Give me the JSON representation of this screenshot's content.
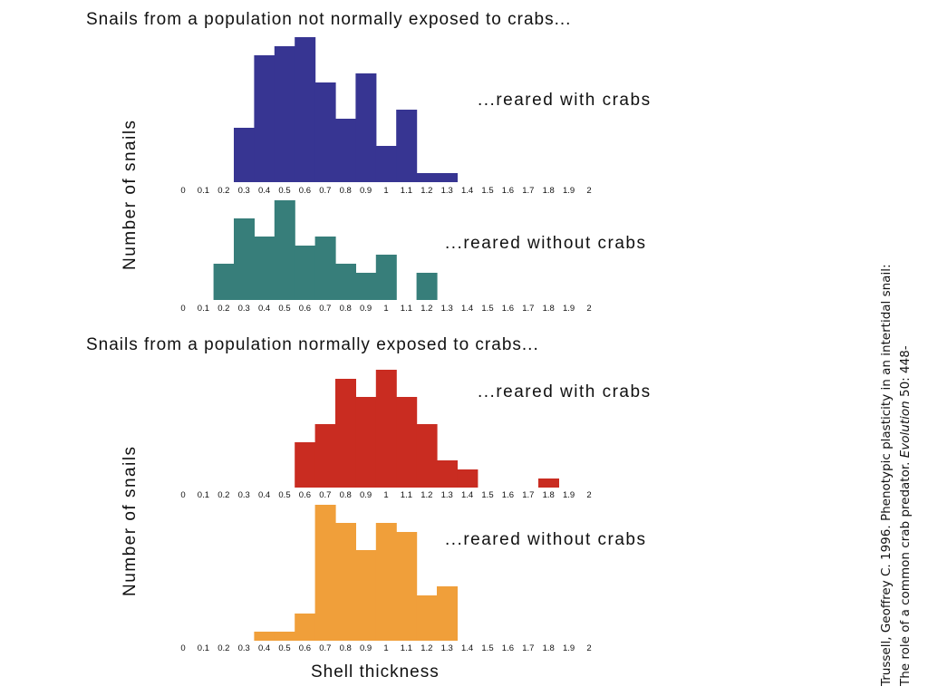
{
  "headings": {
    "top": "Snails from a population not normally exposed to crabs...",
    "bottom": "Snails from a population normally exposed to crabs..."
  },
  "ylabel": "Number of snails",
  "xlabel": "Shell thickness",
  "citation": {
    "line1": "Trussell, Geoffrey C. 1996. Phenotypic plasticity in an intertidal snail:",
    "line2_pre": "The role of a common crab predator. ",
    "line2_journal": "Evolution",
    "line2_post": " 50: 448-"
  },
  "chart_data": [
    {
      "type": "bar",
      "title": "...reared with crabs",
      "population": "not normally exposed to crabs",
      "color": "#373592",
      "xlabel": "Shell thickness",
      "ylabel": "Number of snails",
      "x_ticks": [
        "0",
        "0.1",
        "0.2",
        "0.3",
        "0.4",
        "0.5",
        "0.6",
        "0.7",
        "0.8",
        "0.9",
        "1",
        "1.1",
        "1.2",
        "1.3",
        "1.4",
        "1.5",
        "1.6",
        "1.7",
        "1.8",
        "1.9",
        "2"
      ],
      "xlim": [
        0,
        2
      ],
      "bin_centers": [
        0.3,
        0.4,
        0.5,
        0.6,
        0.7,
        0.8,
        0.9,
        1.0,
        1.1,
        1.2,
        1.3
      ],
      "values": [
        6,
        14,
        15,
        16,
        11,
        7,
        12,
        4,
        8,
        1,
        1
      ]
    },
    {
      "type": "bar",
      "title": "...reared without crabs",
      "population": "not normally exposed to crabs",
      "color": "#377e7a",
      "xlabel": "Shell thickness",
      "ylabel": "Number of snails",
      "x_ticks": [
        "0",
        "0.1",
        "0.2",
        "0.3",
        "0.4",
        "0.5",
        "0.6",
        "0.7",
        "0.8",
        "0.9",
        "1",
        "1.1",
        "1.2",
        "1.3",
        "1.4",
        "1.5",
        "1.6",
        "1.7",
        "1.8",
        "1.9",
        "2"
      ],
      "xlim": [
        0,
        2
      ],
      "bin_centers": [
        0.2,
        0.3,
        0.4,
        0.5,
        0.6,
        0.7,
        0.8,
        0.9,
        1.0,
        1.1,
        1.2
      ],
      "values": [
        4,
        9,
        7,
        11,
        6,
        7,
        4,
        3,
        5,
        0,
        3
      ]
    },
    {
      "type": "bar",
      "title": "...reared with crabs",
      "population": "normally exposed to crabs",
      "color": "#c92c21",
      "xlabel": "Shell thickness",
      "ylabel": "Number of snails",
      "x_ticks": [
        "0",
        "0.1",
        "0.2",
        "0.3",
        "0.4",
        "0.5",
        "0.6",
        "0.7",
        "0.8",
        "0.9",
        "1",
        "1.1",
        "1.2",
        "1.3",
        "1.4",
        "1.5",
        "1.6",
        "1.7",
        "1.8",
        "1.9",
        "2"
      ],
      "xlim": [
        0,
        2
      ],
      "bin_centers": [
        0.6,
        0.7,
        0.8,
        0.9,
        1.0,
        1.1,
        1.2,
        1.3,
        1.4,
        1.5,
        1.6,
        1.7,
        1.8
      ],
      "values": [
        5,
        7,
        12,
        10,
        13,
        10,
        7,
        3,
        2,
        0,
        0,
        0,
        1
      ]
    },
    {
      "type": "bar",
      "title": "...reared without crabs",
      "population": "normally exposed to crabs",
      "color": "#f09f3a",
      "xlabel": "Shell thickness",
      "ylabel": "Number of snails",
      "x_ticks": [
        "0",
        "0.1",
        "0.2",
        "0.3",
        "0.4",
        "0.5",
        "0.6",
        "0.7",
        "0.8",
        "0.9",
        "1",
        "1.1",
        "1.2",
        "1.3",
        "1.4",
        "1.5",
        "1.6",
        "1.7",
        "1.8",
        "1.9",
        "2"
      ],
      "xlim": [
        0,
        2
      ],
      "bin_centers": [
        0.4,
        0.5,
        0.6,
        0.7,
        0.8,
        0.9,
        1.0,
        1.1,
        1.2,
        1.3
      ],
      "values": [
        1,
        1,
        3,
        15,
        13,
        10,
        13,
        12,
        5,
        6
      ]
    }
  ]
}
